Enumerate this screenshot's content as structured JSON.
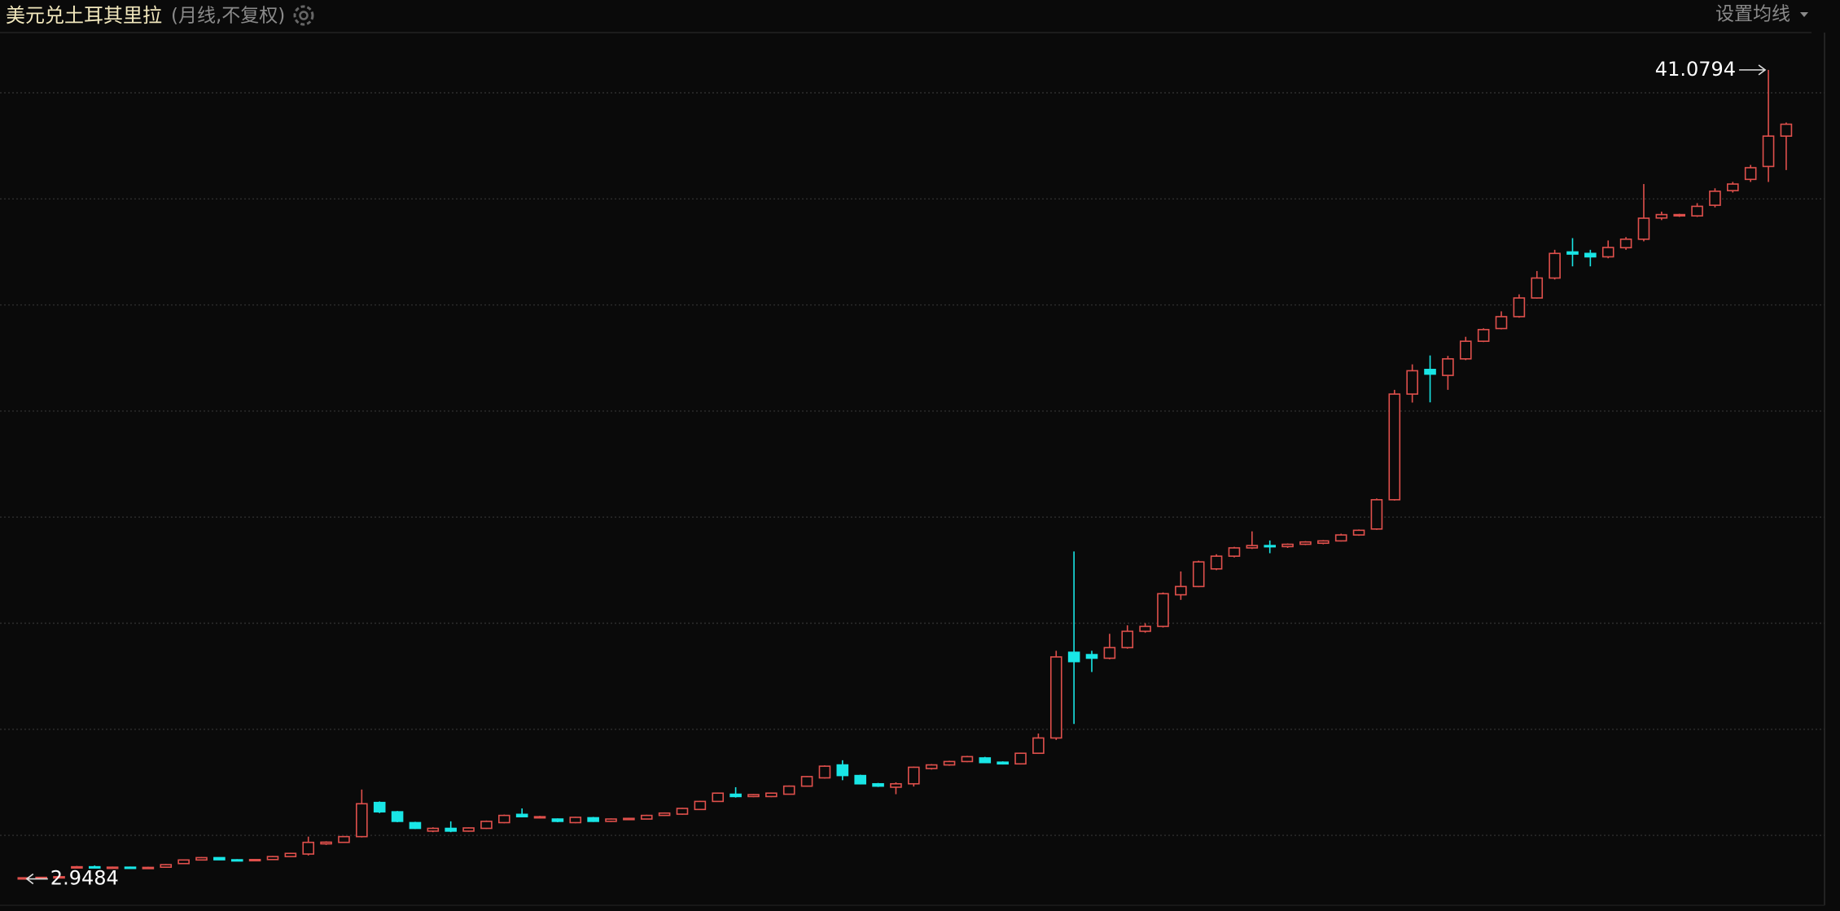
{
  "chart_data": {
    "type": "candlestick",
    "title": "美元兑土耳其里拉",
    "subtitle": "(月线,不复权)",
    "ma_button": "设置均线",
    "up_color": "#e0504c",
    "down_color": "#19e6e6",
    "ylim": [
      1.78,
      42.84
    ],
    "yticks": [
      5,
      10,
      15,
      20,
      25,
      30,
      35,
      40
    ],
    "grid": true,
    "open": [
      2.98,
      3.0,
      3.02,
      3.48,
      3.52,
      3.48,
      3.5,
      3.47,
      3.5,
      3.67,
      3.84,
      3.95,
      3.85,
      3.82,
      3.86,
      4.0,
      4.12,
      4.6,
      4.67,
      4.94,
      6.55,
      6.11,
      5.6,
      5.2,
      5.33,
      5.2,
      5.33,
      5.6,
      5.99,
      5.83,
      5.77,
      5.6,
      5.83,
      5.66,
      5.77,
      5.77,
      5.94,
      6.0,
      6.22,
      6.6,
      6.94,
      6.83,
      6.83,
      6.94,
      7.32,
      7.71,
      8.32,
      7.82,
      7.43,
      7.27,
      7.43,
      8.15,
      8.32,
      8.48,
      8.65,
      8.45,
      8.37,
      8.87,
      9.59,
      13.63,
      13.52,
      13.35,
      13.85,
      14.62,
      14.85,
      16.34,
      16.73,
      17.56,
      18.16,
      18.55,
      18.66,
      18.61,
      18.72,
      18.77,
      18.88,
      19.16,
      19.44,
      20.82,
      25.8,
      26.96,
      26.68,
      27.46,
      28.29,
      28.89,
      29.45,
      30.33,
      31.27,
      32.5,
      32.43,
      32.27,
      32.7,
      33.1,
      34.1,
      34.2,
      34.2,
      34.7,
      35.39,
      35.92,
      36.53,
      37.96
    ],
    "high": [
      3.02,
      3.04,
      3.07,
      3.56,
      3.58,
      3.53,
      3.53,
      3.52,
      3.65,
      3.86,
      3.98,
      3.97,
      3.88,
      3.89,
      4.03,
      4.18,
      4.94,
      4.72,
      4.97,
      7.16,
      6.6,
      6.15,
      5.64,
      5.38,
      5.66,
      5.38,
      5.7,
      5.98,
      6.27,
      5.92,
      5.8,
      5.88,
      5.87,
      5.8,
      5.83,
      5.97,
      6.08,
      6.3,
      6.63,
      7.02,
      7.27,
      6.95,
      7.02,
      7.35,
      7.8,
      8.3,
      8.54,
      7.86,
      7.47,
      7.5,
      8.24,
      8.36,
      8.52,
      8.75,
      8.7,
      8.49,
      8.9,
      9.8,
      13.7,
      18.38,
      13.7,
      14.5,
      14.9,
      15.0,
      16.45,
      17.44,
      17.95,
      18.25,
      18.6,
      19.33,
      18.9,
      18.76,
      18.87,
      18.92,
      19.22,
      19.42,
      20.88,
      26.0,
      27.2,
      27.62,
      27.6,
      28.5,
      28.9,
      29.7,
      30.5,
      31.6,
      32.6,
      33.15,
      32.6,
      33.04,
      33.2,
      35.7,
      34.4,
      34.3,
      34.8,
      35.5,
      35.8,
      36.6,
      41.0794,
      38.6
    ],
    "low": [
      2.9484,
      2.98,
      3.0,
      3.45,
      3.45,
      3.45,
      3.44,
      3.45,
      3.48,
      3.65,
      3.82,
      3.83,
      3.8,
      3.8,
      3.84,
      3.98,
      4.05,
      4.55,
      4.64,
      4.9,
      6.05,
      5.62,
      5.3,
      5.15,
      5.15,
      5.17,
      5.3,
      5.57,
      5.85,
      5.8,
      5.62,
      5.57,
      5.63,
      5.63,
      5.74,
      5.75,
      5.92,
      5.97,
      6.2,
      6.58,
      6.78,
      6.8,
      6.8,
      6.92,
      7.3,
      7.68,
      7.6,
      7.4,
      7.28,
      6.94,
      7.3,
      8.1,
      8.28,
      8.45,
      8.4,
      8.34,
      8.34,
      8.84,
      9.5,
      10.25,
      12.7,
      13.3,
      13.8,
      14.55,
      14.8,
      16.1,
      16.7,
      17.5,
      18.1,
      18.5,
      18.3,
      18.55,
      18.68,
      18.72,
      18.85,
      19.12,
      19.4,
      20.78,
      25.4,
      25.41,
      26.0,
      27.4,
      28.25,
      28.85,
      29.4,
      30.3,
      31.2,
      31.82,
      31.82,
      32.2,
      32.6,
      33.0,
      34.0,
      34.15,
      34.15,
      34.6,
      35.3,
      35.8,
      35.8,
      36.36
    ],
    "close": [
      3.0,
      3.02,
      3.05,
      3.52,
      3.48,
      3.5,
      3.47,
      3.49,
      3.62,
      3.84,
      3.95,
      3.85,
      3.82,
      3.86,
      4.0,
      4.15,
      4.67,
      4.68,
      4.94,
      6.49,
      6.11,
      5.66,
      5.33,
      5.33,
      5.2,
      5.35,
      5.66,
      5.94,
      5.88,
      5.88,
      5.66,
      5.85,
      5.66,
      5.77,
      5.8,
      5.94,
      6.05,
      6.27,
      6.6,
      6.99,
      6.83,
      6.92,
      6.99,
      7.32,
      7.77,
      8.26,
      7.82,
      7.43,
      7.32,
      7.43,
      8.21,
      8.32,
      8.48,
      8.71,
      8.43,
      8.37,
      8.87,
      9.59,
      13.41,
      13.19,
      13.35,
      13.85,
      14.62,
      14.85,
      16.39,
      16.73,
      17.89,
      18.16,
      18.55,
      18.66,
      18.61,
      18.72,
      18.83,
      18.88,
      19.16,
      19.38,
      20.82,
      25.8,
      26.9,
      26.74,
      27.46,
      28.29,
      28.84,
      29.45,
      30.33,
      31.27,
      32.43,
      32.4,
      32.27,
      32.71,
      33.1,
      34.09,
      34.26,
      34.26,
      34.65,
      35.36,
      35.7,
      36.47,
      37.96,
      38.52
    ]
  }
}
